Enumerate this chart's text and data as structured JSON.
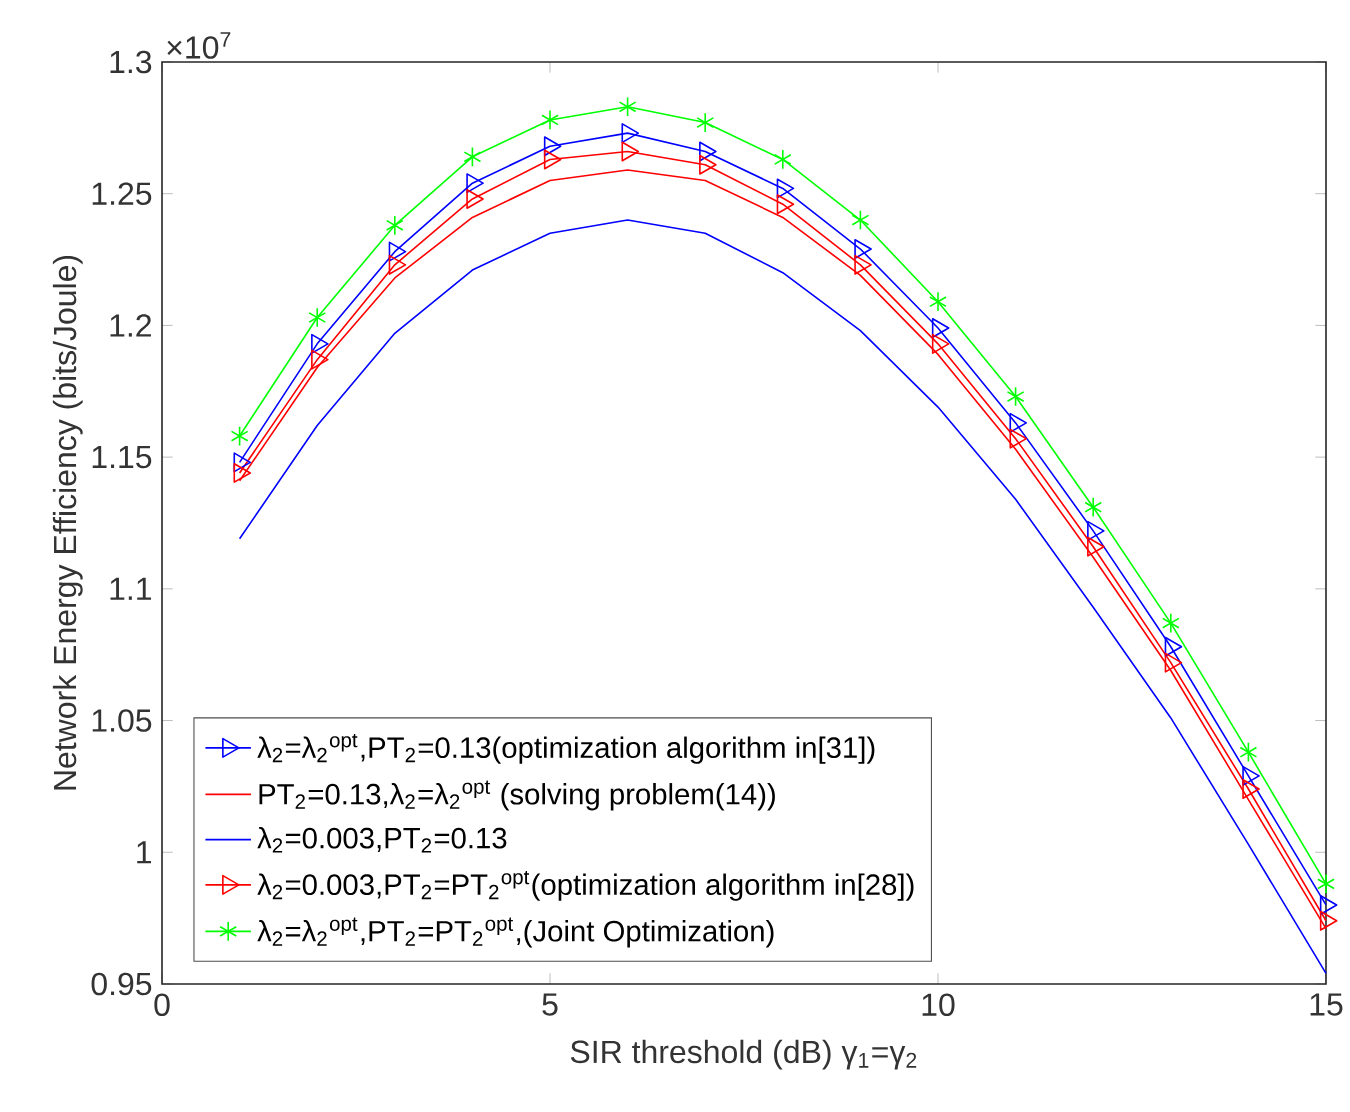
{
  "chart_data": {
    "type": "line",
    "xlabel": "SIR threshold (dB)  γ$_{1}$=γ$_{2}$",
    "ylabel": "Network Energy Efficiency (bits/Joule)",
    "annotations": [
      "×10$^{7}$"
    ],
    "x": [
      1,
      2,
      3,
      4,
      5,
      6,
      7,
      8,
      9,
      10,
      11,
      12,
      13,
      14,
      15
    ],
    "xlim": [
      0,
      15
    ],
    "xticks": [
      0,
      5,
      10,
      15
    ],
    "ylim": [
      0.95,
      1.3
    ],
    "yticks": [
      0.95,
      1,
      1.05,
      1.1,
      1.15,
      1.2,
      1.25,
      1.3
    ],
    "grid": false,
    "legend": "bottom left",
    "line_style": "solid",
    "series": [
      {
        "name": "λ$_{2}$=λ$_{2}$$^{opt}$,PT$_{2}$=0.13(optimization algorithm in[31])",
        "color": "#0000ff",
        "marker": "triangle",
        "values": [
          1.148,
          1.193,
          1.228,
          1.254,
          1.268,
          1.273,
          1.266,
          1.252,
          1.229,
          1.199,
          1.163,
          1.122,
          1.078,
          1.029,
          0.98
        ]
      },
      {
        "name": "PT$_{2}$=0.13,λ$_{2}$=λ$_{2}$$^{opt}$ (solving problem(14))",
        "color": "#ff0000",
        "marker": "none",
        "values": [
          1.141,
          1.184,
          1.218,
          1.241,
          1.255,
          1.259,
          1.255,
          1.241,
          1.219,
          1.189,
          1.153,
          1.112,
          1.069,
          1.02,
          0.971
        ]
      },
      {
        "name": "λ$_{2}$=0.003,PT$_{2}$=0.13",
        "color": "#0000ff",
        "marker": "none",
        "values": [
          1.119,
          1.162,
          1.197,
          1.221,
          1.235,
          1.24,
          1.235,
          1.22,
          1.198,
          1.169,
          1.134,
          1.093,
          1.051,
          1.003,
          0.954
        ]
      },
      {
        "name": "λ$_{2}$=0.003,PT$_{2}$=PT$_{2}$$^{opt}$(optimization algorithm in[28])",
        "color": "#ff0000",
        "marker": "triangle",
        "values": [
          1.144,
          1.187,
          1.223,
          1.248,
          1.263,
          1.266,
          1.261,
          1.246,
          1.223,
          1.193,
          1.157,
          1.116,
          1.072,
          1.024,
          0.974
        ]
      },
      {
        "name": "λ$_{2}$=λ$_{2}$$^{opt}$,PT$_{2}$=PT$_{2}$$^{opt}$,(Joint Optimization)",
        "color": "#00ff00",
        "marker": "cross",
        "values": [
          1.158,
          1.203,
          1.238,
          1.264,
          1.278,
          1.283,
          1.277,
          1.263,
          1.24,
          1.209,
          1.173,
          1.131,
          1.087,
          1.038,
          0.988
        ]
      }
    ]
  }
}
